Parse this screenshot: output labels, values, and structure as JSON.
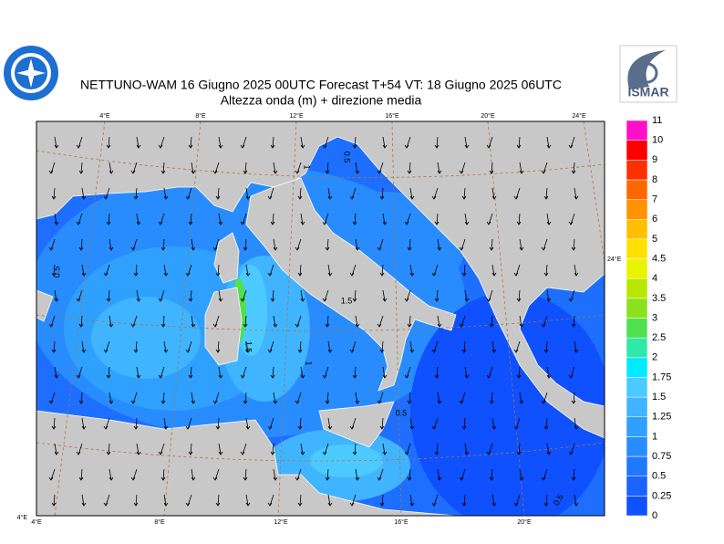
{
  "header": {
    "title": "NETTUNO-WAM  16   Giugno  2025 00UTC Forecast T+54 VT: 18   Giugno  2025 06UTC",
    "subtitle": "Altezza onda (m) + direzione media",
    "logo_right": "ISMAR"
  },
  "map": {
    "top_labels": [
      "4°E",
      "8°E",
      "12°E",
      "16°E",
      "20°E",
      "24°E"
    ],
    "bottom_labels": [
      "4°E",
      "8°E",
      "12°E",
      "16°E",
      "20°E"
    ],
    "right_label": "24°E",
    "corner_label": "4°E",
    "contour_labels": [
      "0.5",
      "1.5",
      "1.5",
      "1",
      "0.5",
      "0.5",
      "1",
      "0.5"
    ]
  },
  "legend": {
    "levels": [
      0,
      0.25,
      0.5,
      0.75,
      1,
      1.25,
      1.5,
      1.75,
      2,
      2.5,
      3,
      3.5,
      4,
      4.5,
      5,
      6,
      7,
      8,
      9,
      10,
      11
    ],
    "colors": [
      "#0f50ff",
      "#1a64ff",
      "#2078ff",
      "#288cff",
      "#30a0ff",
      "#40b4ff",
      "#4ccaff",
      "#00eaff",
      "#30e8a8",
      "#50e050",
      "#8ce01e",
      "#b8e800",
      "#e8f400",
      "#ffe000",
      "#ffc000",
      "#ff9400",
      "#ff6800",
      "#ff3000",
      "#ff0000",
      "#ff10c8"
    ]
  }
}
